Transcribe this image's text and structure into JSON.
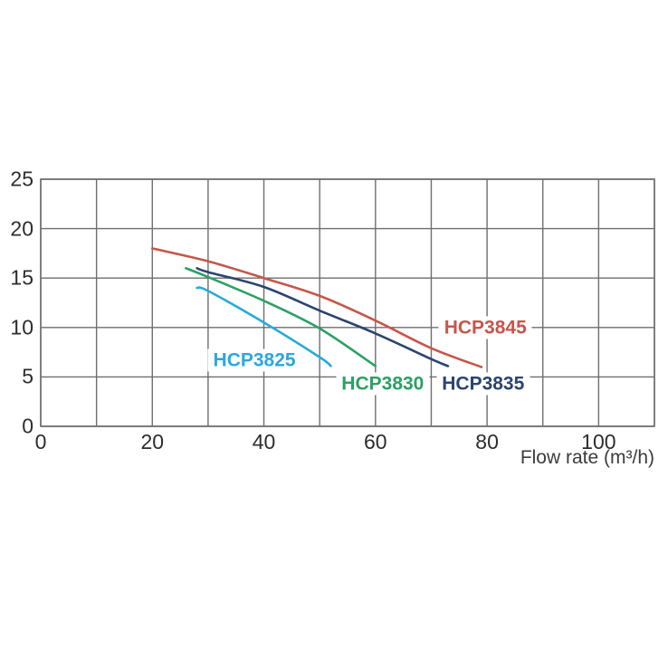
{
  "chart_data": {
    "type": "line",
    "title": "",
    "xlabel": "Flow rate (m³/h)",
    "ylabel": "",
    "xlim": [
      0,
      110
    ],
    "ylim": [
      0,
      25
    ],
    "x_grid_step": 10,
    "y_grid_step": 5,
    "x_ticks": [
      0,
      20,
      40,
      60,
      80,
      100
    ],
    "y_ticks": [
      0,
      5,
      10,
      15,
      20,
      25
    ],
    "grid": true,
    "grid_color": "#6e6e6e",
    "tick_color": "#2d2d2d",
    "legend_position": "inline-labels",
    "series": [
      {
        "name": "HCP3845",
        "color": "#c5574a",
        "points": [
          [
            20,
            18.0
          ],
          [
            30,
            16.7
          ],
          [
            40,
            15.0
          ],
          [
            50,
            13.2
          ],
          [
            60,
            10.7
          ],
          [
            70,
            7.9
          ],
          [
            79,
            6.0
          ]
        ],
        "label_pos": {
          "x": 79.7,
          "y": 10.0
        }
      },
      {
        "name": "HCP3835",
        "color": "#2b4470",
        "points": [
          [
            28,
            16.0
          ],
          [
            30,
            15.6
          ],
          [
            40,
            14.1
          ],
          [
            50,
            11.7
          ],
          [
            60,
            9.4
          ],
          [
            70,
            6.8
          ],
          [
            73,
            6.1
          ]
        ],
        "label_pos": {
          "x": 79.3,
          "y": 4.3
        }
      },
      {
        "name": "HCP3830",
        "color": "#2ba163",
        "points": [
          [
            26,
            16.0
          ],
          [
            30,
            15.1
          ],
          [
            40,
            12.7
          ],
          [
            50,
            9.9
          ],
          [
            60,
            6.1
          ]
        ],
        "label_pos": {
          "x": 61.3,
          "y": 4.3
        }
      },
      {
        "name": "HCP3825",
        "color": "#29a9dc",
        "points": [
          [
            28,
            14.0
          ],
          [
            30,
            13.7
          ],
          [
            40,
            10.5
          ],
          [
            50,
            7.0
          ],
          [
            52,
            6.1
          ]
        ],
        "label_pos": {
          "x": 38.3,
          "y": 6.7
        }
      }
    ]
  }
}
